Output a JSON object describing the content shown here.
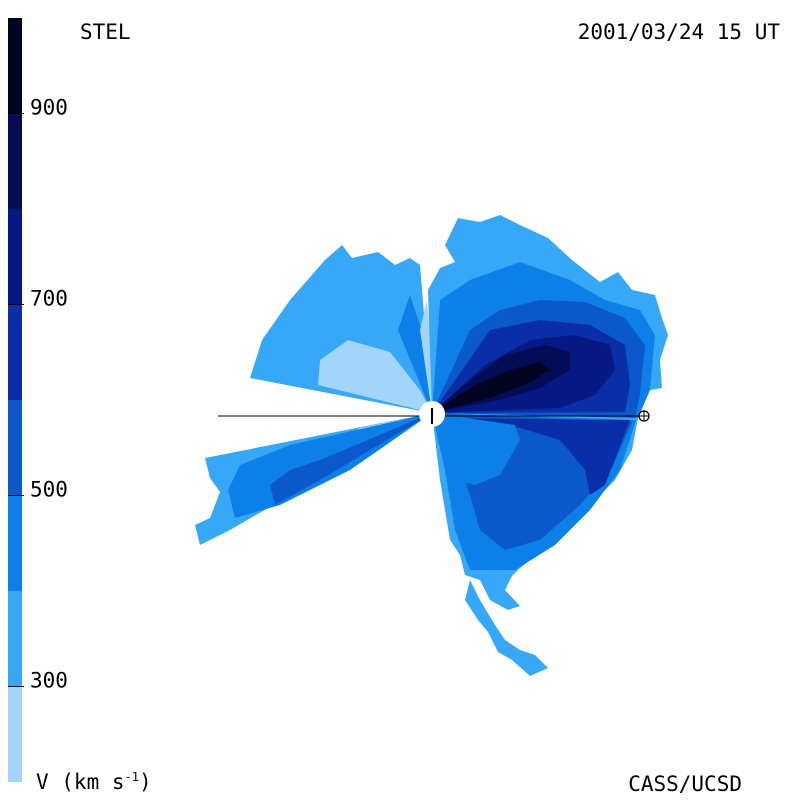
{
  "chart_data": {
    "type": "heatmap",
    "title_left": "STEL",
    "title_right": "2001/03/24 15 UT",
    "credit": "CASS/UCSD",
    "colorbar": {
      "label": "V (km s",
      "label_sup": "-1",
      "label_close": ")",
      "min": 200,
      "max": 1000,
      "ticks": [
        300,
        500,
        700,
        900
      ],
      "tick_labels": [
        "300",
        "500",
        "700",
        "900"
      ],
      "bands": [
        {
          "from": 200,
          "to": 300,
          "color": "#a3d4fb"
        },
        {
          "from": 300,
          "to": 400,
          "color": "#36a8f7"
        },
        {
          "from": 400,
          "to": 500,
          "color": "#0c80e8"
        },
        {
          "from": 500,
          "to": 600,
          "color": "#0a58c9"
        },
        {
          "from": 600,
          "to": 700,
          "color": "#0a2ea8"
        },
        {
          "from": 700,
          "to": 800,
          "color": "#061883"
        },
        {
          "from": 800,
          "to": 900,
          "color": "#040b57"
        },
        {
          "from": 900,
          "to": 1000,
          "color": "#020421"
        }
      ]
    },
    "markers": [
      "sun-marker",
      "earth-marker"
    ]
  }
}
